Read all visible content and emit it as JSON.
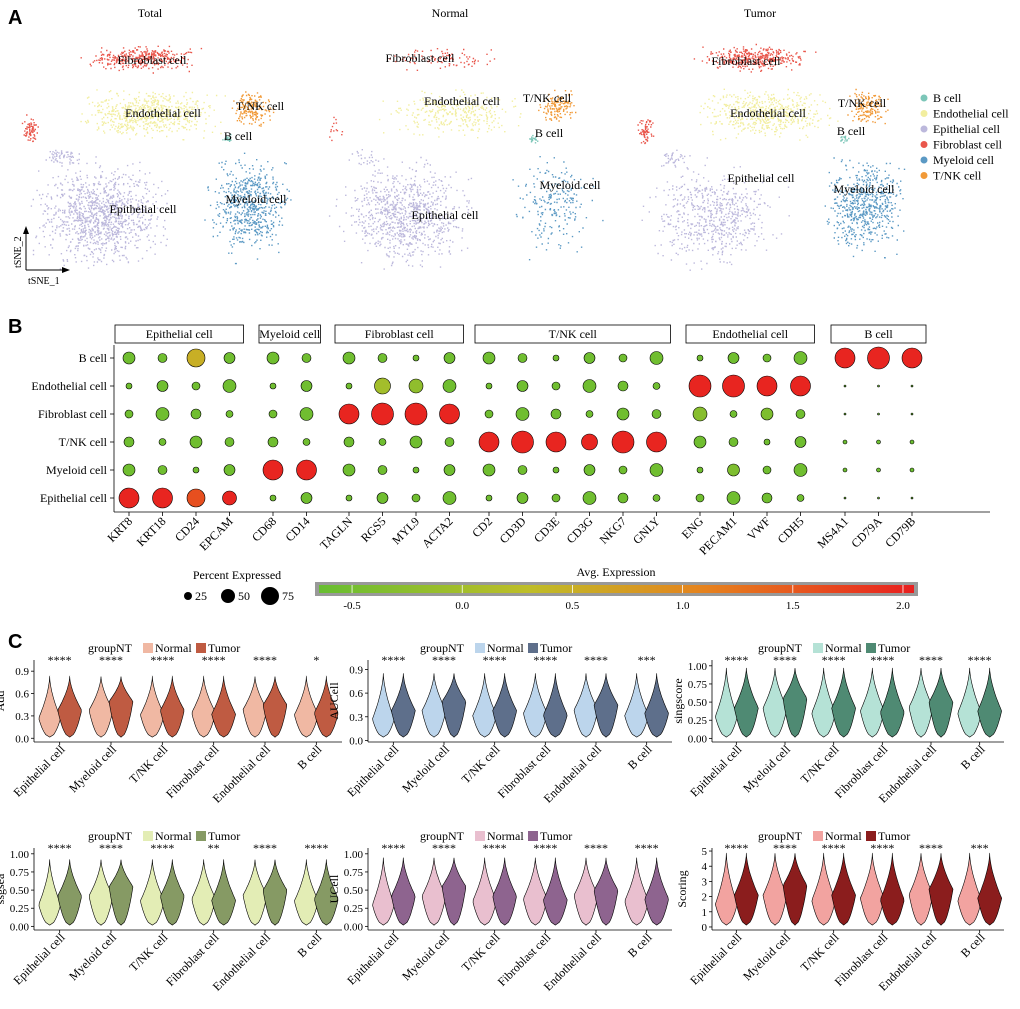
{
  "panels": {
    "a": "A",
    "b": "B",
    "c": "C"
  },
  "colors": {
    "B cell": "#7cc6b8",
    "Endothelial cell": "#f2ee9f",
    "Epithelial cell": "#bcb8dc",
    "Fibroblast cell": "#e9574c",
    "Myeloid cell": "#5b99c4",
    "T/NK cell": "#f19a38"
  },
  "tsne": {
    "titles": [
      "Total",
      "Normal",
      "Tumor"
    ],
    "legend": [
      "B cell",
      "Endothelial cell",
      "Epithelial cell",
      "Fibroblast cell",
      "Myeloid cell",
      "T/NK cell"
    ],
    "axis_x": "tSNE_1",
    "axis_y": "tSNE_2"
  },
  "dotplot": {
    "groups": [
      {
        "label": "Epithelial cell",
        "genes": [
          "KRT8",
          "KRT18",
          "CD24",
          "EPCAM"
        ]
      },
      {
        "label": "Myeloid cell",
        "genes": [
          "CD68",
          "CD14"
        ]
      },
      {
        "label": "Fibroblast cell",
        "genes": [
          "TAGLN",
          "RGS5",
          "MYL9",
          "ACTA2"
        ]
      },
      {
        "label": "T/NK cell",
        "genes": [
          "CD2",
          "CD3D",
          "CD3E",
          "CD3G",
          "NKG7",
          "GNLY"
        ]
      },
      {
        "label": "Endothelial cell",
        "genes": [
          "ENG",
          "PECAM1",
          "VWF",
          "CDH5"
        ]
      },
      {
        "label": "B cell",
        "genes": [
          "MS4A1",
          "CD79A",
          "CD79B"
        ]
      }
    ],
    "rows": [
      "B cell",
      "Endothelial cell",
      "Fibroblast cell",
      "T/NK cell",
      "Myeloid cell",
      "Epithelial cell"
    ],
    "pct_legend_title": "Percent Expressed",
    "pct_legend_values": [
      25,
      50,
      75
    ],
    "expr_legend_title": "Avg. Expression",
    "expr_ticks": [
      "-0.5",
      "0.0",
      "0.5",
      "1.0",
      "1.5",
      "2.0"
    ],
    "expr_range": [
      -0.65,
      2.05
    ]
  },
  "violins": {
    "categories": [
      "Epithelial cell",
      "Myeloid cell",
      "T/NK cell",
      "Fibroblast cell",
      "Endothelial cell",
      "B cell"
    ],
    "legend_title": "groupNT",
    "legend_items": [
      "Normal",
      "Tumor"
    ],
    "plots": [
      {
        "ylabel": "Add",
        "ticks": [
          "0.0",
          "0.3",
          "0.6",
          "0.9"
        ],
        "ylim": [
          -0.05,
          1.05
        ],
        "normal_color": "#f0b8a3",
        "tumor_color": "#bf5b42",
        "sig": [
          "****",
          "****",
          "****",
          "****",
          "****",
          "*"
        ]
      },
      {
        "ylabel": "AUCell",
        "ticks": [
          "0.0",
          "0.3",
          "0.6",
          "0.9"
        ],
        "ylim": [
          -0.02,
          1.02
        ],
        "normal_color": "#bcd5ec",
        "tumor_color": "#5e6f8b",
        "sig": [
          "****",
          "****",
          "****",
          "****",
          "****",
          "***"
        ]
      },
      {
        "ylabel": "singscore",
        "ticks": [
          "0.00",
          "0.25",
          "0.50",
          "0.75",
          "1.00"
        ],
        "ylim": [
          -0.05,
          1.08
        ],
        "normal_color": "#b5e2d6",
        "tumor_color": "#4f8a73",
        "sig": [
          "****",
          "****",
          "****",
          "****",
          "****",
          "****"
        ]
      },
      {
        "ylabel": "ssgsea",
        "ticks": [
          "0.00",
          "0.25",
          "0.50",
          "0.75",
          "1.00"
        ],
        "ylim": [
          -0.05,
          1.08
        ],
        "normal_color": "#e3edb5",
        "tumor_color": "#869a64",
        "sig": [
          "****",
          "****",
          "****",
          "**",
          "****",
          "****"
        ]
      },
      {
        "ylabel": "UCell",
        "ticks": [
          "0.00",
          "0.25",
          "0.50",
          "0.75",
          "1.00"
        ],
        "ylim": [
          -0.05,
          1.08
        ],
        "normal_color": "#e9bfcf",
        "tumor_color": "#8e648f",
        "sig": [
          "****",
          "****",
          "****",
          "****",
          "****",
          "****"
        ]
      },
      {
        "ylabel": "Scoring",
        "ticks": [
          "0",
          "1",
          "2",
          "3",
          "4",
          "5"
        ],
        "ylim": [
          -0.2,
          5.2
        ],
        "normal_color": "#f2a3a0",
        "tumor_color": "#8b1d1d",
        "sig": [
          "****",
          "****",
          "****",
          "****",
          "****",
          "***"
        ]
      }
    ]
  }
}
